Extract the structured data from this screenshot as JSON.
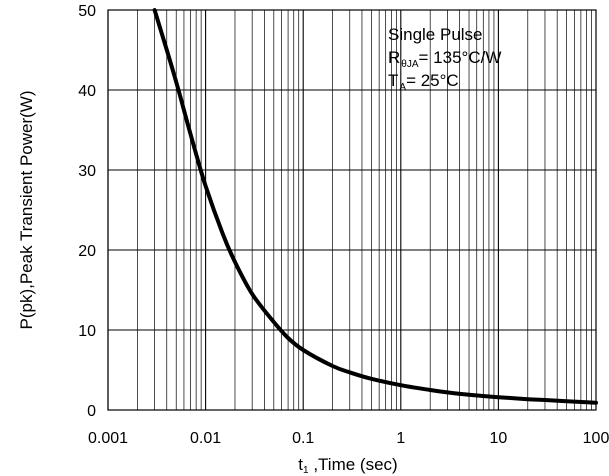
{
  "chart_data": {
    "type": "line",
    "title": "",
    "xlabel": {
      "main": "t",
      "sub": "1",
      "rest": " ,Time (sec)"
    },
    "ylabel": "P(pk),Peak Transient Power(W)",
    "x_scale": "log",
    "xlim": [
      0.001,
      100
    ],
    "ylim": [
      0,
      50
    ],
    "x_ticks": [
      "0.001",
      "0.01",
      "0.1",
      "1",
      "10",
      "100"
    ],
    "y_ticks": [
      "0",
      "10",
      "20",
      "30",
      "40",
      "50"
    ],
    "grid": true,
    "annotations": {
      "line1": "Single Pulse",
      "line2": {
        "main": "R",
        "sub": "θJA",
        "rest": "= 135°C/W"
      },
      "line3": {
        "main": "T",
        "sub": "A",
        "rest": "= 25°C"
      }
    },
    "series": [
      {
        "x": [
          0.003,
          0.004,
          0.005,
          0.006,
          0.007,
          0.008,
          0.01,
          0.015,
          0.02,
          0.03,
          0.05,
          0.07,
          0.1,
          0.2,
          0.3,
          0.5,
          1,
          2,
          3,
          5,
          10,
          20,
          30,
          50,
          100
        ],
        "y": [
          50,
          45,
          41,
          37.5,
          34.5,
          32,
          28,
          22,
          18.5,
          14.5,
          11,
          9,
          7.5,
          5.5,
          4.7,
          3.9,
          3.1,
          2.5,
          2.2,
          1.9,
          1.6,
          1.35,
          1.25,
          1.1,
          0.9
        ]
      }
    ],
    "line_color": "#000000"
  }
}
